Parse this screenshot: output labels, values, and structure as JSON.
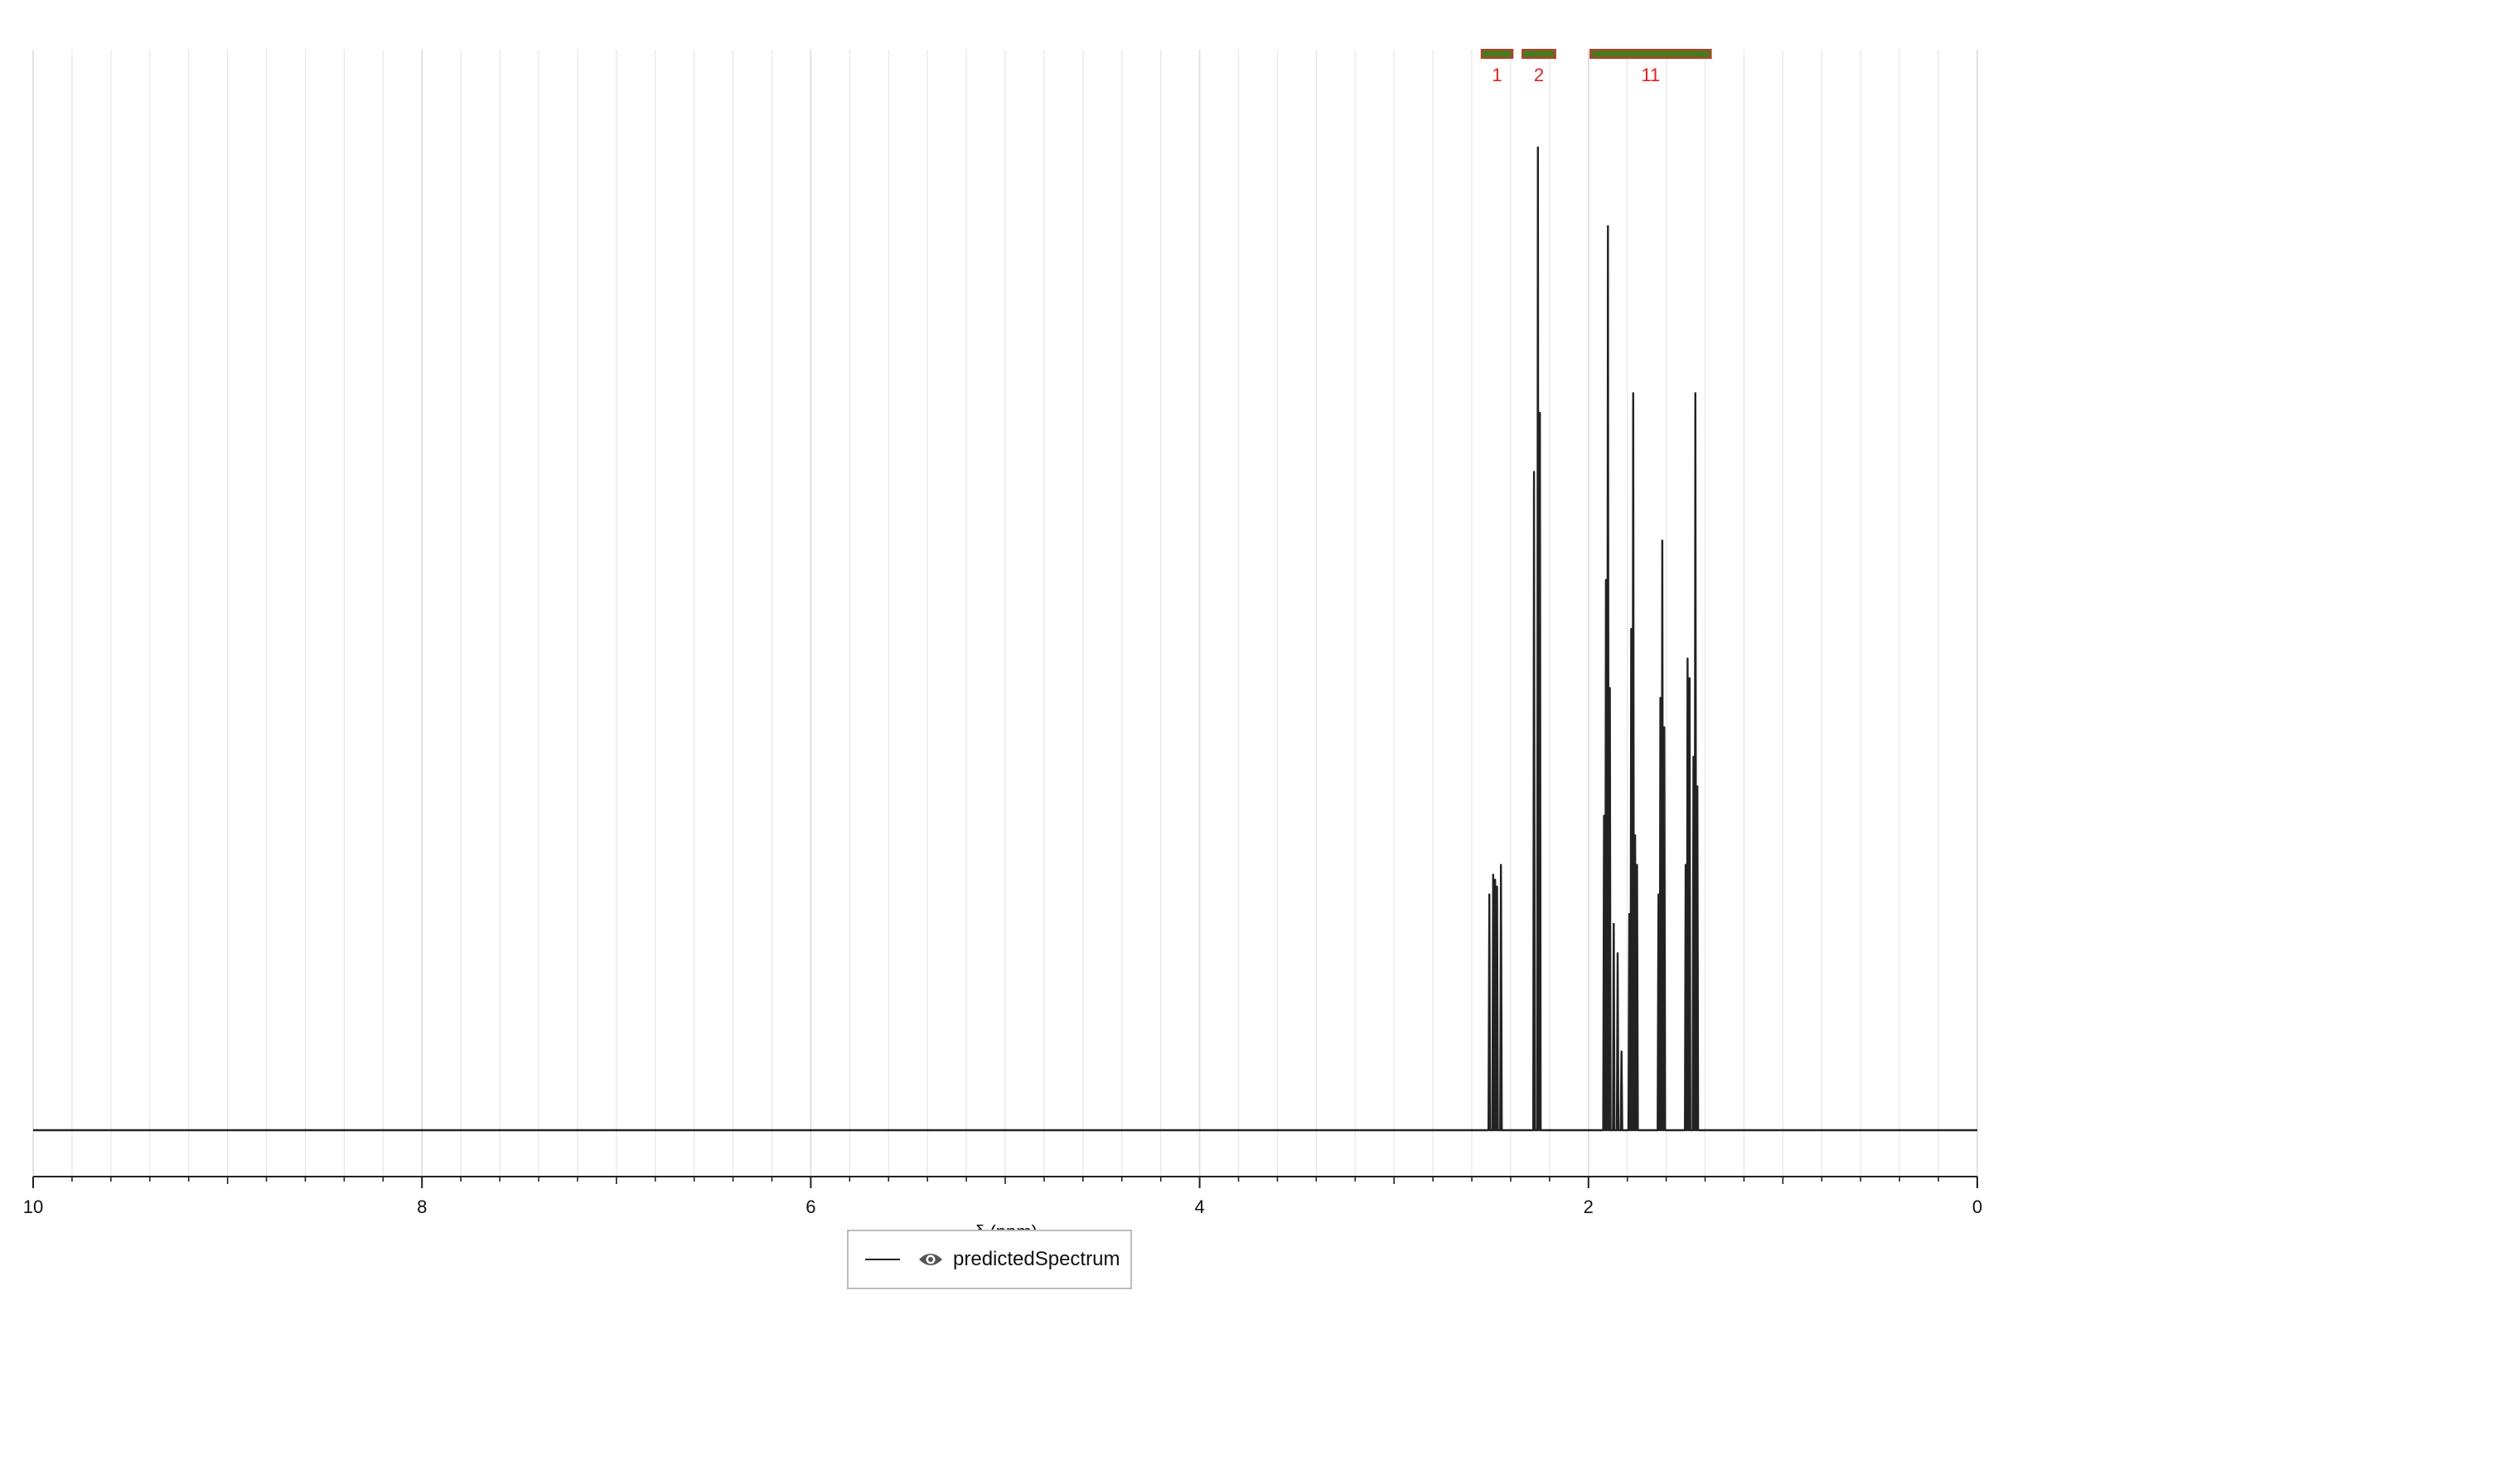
{
  "chart_data": {
    "type": "line",
    "title": "",
    "xlabel": "δ (ppm)",
    "ylabel": "",
    "x_reversed": true,
    "xlim": [
      10,
      0
    ],
    "ylim": [
      0,
      1
    ],
    "grid": true,
    "x_major_ticks": [
      "10",
      "8",
      "6",
      "4",
      "2",
      "0"
    ],
    "x_major_tick_values": [
      10,
      8,
      6,
      4,
      2,
      0
    ],
    "x_minor_step": 0.2,
    "legend": {
      "placement": "bottom-center",
      "entries": [
        {
          "name": "predictedSpectrum",
          "icon": "eye-icon",
          "color": "#222222"
        }
      ]
    },
    "series": [
      {
        "name": "predictedSpectrum",
        "color": "#222222",
        "peaks": [
          {
            "ppm": 2.51,
            "height": 0.24
          },
          {
            "ppm": 2.49,
            "height": 0.26
          },
          {
            "ppm": 2.48,
            "height": 0.255
          },
          {
            "ppm": 2.47,
            "height": 0.248
          },
          {
            "ppm": 2.45,
            "height": 0.27
          },
          {
            "ppm": 2.28,
            "height": 0.67
          },
          {
            "ppm": 2.26,
            "height": 1.0
          },
          {
            "ppm": 2.25,
            "height": 0.73
          },
          {
            "ppm": 1.92,
            "height": 0.32
          },
          {
            "ppm": 1.91,
            "height": 0.56
          },
          {
            "ppm": 1.9,
            "height": 0.92
          },
          {
            "ppm": 1.89,
            "height": 0.45
          },
          {
            "ppm": 1.87,
            "height": 0.21
          },
          {
            "ppm": 1.85,
            "height": 0.18
          },
          {
            "ppm": 1.83,
            "height": 0.08
          },
          {
            "ppm": 1.79,
            "height": 0.22
          },
          {
            "ppm": 1.78,
            "height": 0.51
          },
          {
            "ppm": 1.77,
            "height": 0.75
          },
          {
            "ppm": 1.76,
            "height": 0.3
          },
          {
            "ppm": 1.75,
            "height": 0.27
          },
          {
            "ppm": 1.64,
            "height": 0.24
          },
          {
            "ppm": 1.63,
            "height": 0.44
          },
          {
            "ppm": 1.62,
            "height": 0.6
          },
          {
            "ppm": 1.61,
            "height": 0.41
          },
          {
            "ppm": 1.5,
            "height": 0.27
          },
          {
            "ppm": 1.49,
            "height": 0.48
          },
          {
            "ppm": 1.48,
            "height": 0.46
          },
          {
            "ppm": 1.46,
            "height": 0.38
          },
          {
            "ppm": 1.45,
            "height": 0.75
          },
          {
            "ppm": 1.44,
            "height": 0.35
          }
        ]
      }
    ],
    "integrals": [
      {
        "label": "1",
        "from": 2.55,
        "to": 2.39,
        "color": "#4a7a1e",
        "label_color": "#e02020"
      },
      {
        "label": "2",
        "from": 2.34,
        "to": 2.17,
        "color": "#4a7a1e",
        "label_color": "#e02020"
      },
      {
        "label": "11",
        "from": 1.99,
        "to": 1.37,
        "color": "#4a7a1e",
        "label_color": "#e02020"
      }
    ],
    "colors": {
      "spectrum": "#222222",
      "grid": "#e6e6e6",
      "axis": "#222222",
      "integral_bar": "#4a7a1e",
      "integral_border": "#c0392b",
      "integral_label": "#e02020"
    }
  }
}
